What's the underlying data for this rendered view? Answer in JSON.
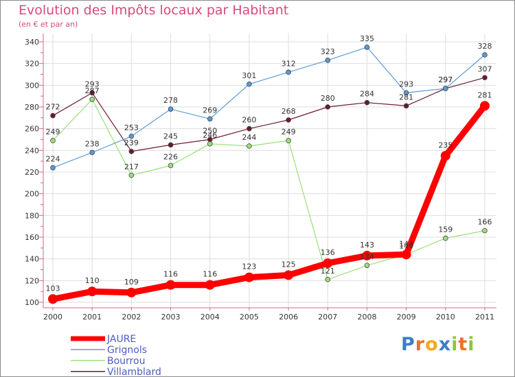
{
  "chart_data": {
    "type": "line",
    "title": "Evolution des Impôts locaux par Habitant",
    "subtitle": "(en € et par an)",
    "xlabel": "",
    "ylabel": "",
    "x": [
      "2000",
      "2001",
      "2002",
      "2003",
      "2004",
      "2005",
      "2006",
      "2007",
      "2008",
      "2009",
      "2010",
      "2011"
    ],
    "ylim": [
      100,
      340
    ],
    "yticks": [
      100,
      120,
      140,
      160,
      180,
      200,
      220,
      240,
      260,
      280,
      300,
      320,
      340
    ],
    "grid": true,
    "legend_position": "bottom-left",
    "series": [
      {
        "name": "Villamblard",
        "color": "#6b1a2a",
        "values": [
          272,
          293,
          239,
          245,
          250,
          260,
          268,
          280,
          284,
          281,
          297,
          307
        ]
      },
      {
        "name": "Bourrou",
        "color": "#99e07a",
        "values": [
          249,
          287,
          217,
          226,
          246,
          244,
          249,
          121,
          134,
          144,
          159,
          166
        ]
      },
      {
        "name": "Grignols",
        "color": "#5b9ad5",
        "values": [
          224,
          238,
          253,
          278,
          269,
          301,
          312,
          323,
          335,
          293,
          297,
          328
        ]
      },
      {
        "name": "JAURE",
        "color": "#ff0000",
        "values": [
          103,
          110,
          109,
          116,
          116,
          123,
          125,
          136,
          143,
          144,
          235,
          281
        ]
      }
    ],
    "labels": {
      "JAURE": [
        "103",
        "110",
        "109",
        "116",
        "116",
        "123",
        "125",
        "136",
        "143",
        "144",
        "235",
        "281"
      ],
      "Grignols": [
        "224",
        "238",
        "253",
        "278",
        "269",
        "301",
        "312",
        "323",
        "335",
        "293",
        "297",
        "328"
      ],
      "Bourrou": [
        "249",
        "287",
        "217",
        "226",
        "246",
        "244",
        "249",
        "121",
        "134",
        "144",
        "159",
        "166"
      ],
      "Villamblard": [
        "272",
        "293",
        "239",
        "245",
        "250",
        "260",
        "268",
        "280",
        "284",
        "281",
        "297",
        "307"
      ]
    },
    "legend": [
      "JAURE",
      "Grignols",
      "Bourrou",
      "Villamblard"
    ]
  },
  "logo": {
    "text": "Proxiti",
    "letters": [
      "P",
      "r",
      "o",
      "x",
      "i",
      "t",
      "i"
    ],
    "colors": [
      "#3a7ec8",
      "#e8732a",
      "#f2a91e",
      "#3a7ec8",
      "#8bc53f",
      "#e8732a",
      "#8bc53f"
    ]
  }
}
